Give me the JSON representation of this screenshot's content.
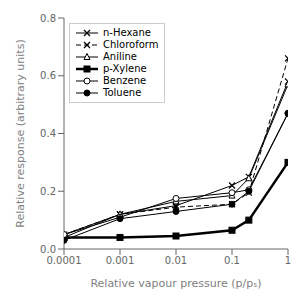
{
  "chart_data": {
    "type": "line",
    "title": "",
    "xlabel": "Relative vapour pressure (p/pₛ)",
    "ylabel": "Relative response (arbitrary units)",
    "x": [
      0.0001,
      0.001,
      0.01,
      0.1,
      0.2,
      1.0
    ],
    "xlim": [
      0.0001,
      1.0
    ],
    "xticks": [
      0.0001,
      0.001,
      0.01,
      0.1,
      1
    ],
    "ylim": [
      0.0,
      0.8
    ],
    "yticks": [
      {
        "value": 0,
        "label": "0.0"
      },
      0.2,
      0.4,
      0.6,
      0.8
    ],
    "log": "x",
    "grid": false,
    "legend": "upper left",
    "series": [
      {
        "name": "n-Hexane",
        "color": "black",
        "marker": "x",
        "line_style": "solid",
        "values": [
          0.04,
          0.12,
          0.15,
          0.22,
          0.25,
          0.58
        ]
      },
      {
        "name": "Chloroform",
        "color": "black",
        "marker": "x",
        "line_style": "dashed",
        "values": [
          0.05,
          0.12,
          0.145,
          0.155,
          0.195,
          0.66
        ]
      },
      {
        "name": "Aniline",
        "color": "black",
        "marker": "triangle-open",
        "line_style": "solid",
        "values": [
          0.05,
          0.12,
          0.165,
          0.185,
          0.245,
          0.57
        ]
      },
      {
        "name": "p-Xylene",
        "color": "black",
        "marker": "square",
        "line_style": "solid",
        "values": [
          0.04,
          0.04,
          0.045,
          0.065,
          0.1,
          0.3
        ]
      },
      {
        "name": "Benzene",
        "color": "black",
        "marker": "circle-open",
        "line_style": "solid",
        "values": [
          0.05,
          0.11,
          0.175,
          0.195,
          0.205,
          0.47
        ]
      },
      {
        "name": "Toluene",
        "color": "black",
        "marker": "circle",
        "line_style": "solid",
        "values": [
          0.03,
          0.105,
          0.13,
          0.155,
          0.2,
          0.47
        ]
      }
    ]
  }
}
